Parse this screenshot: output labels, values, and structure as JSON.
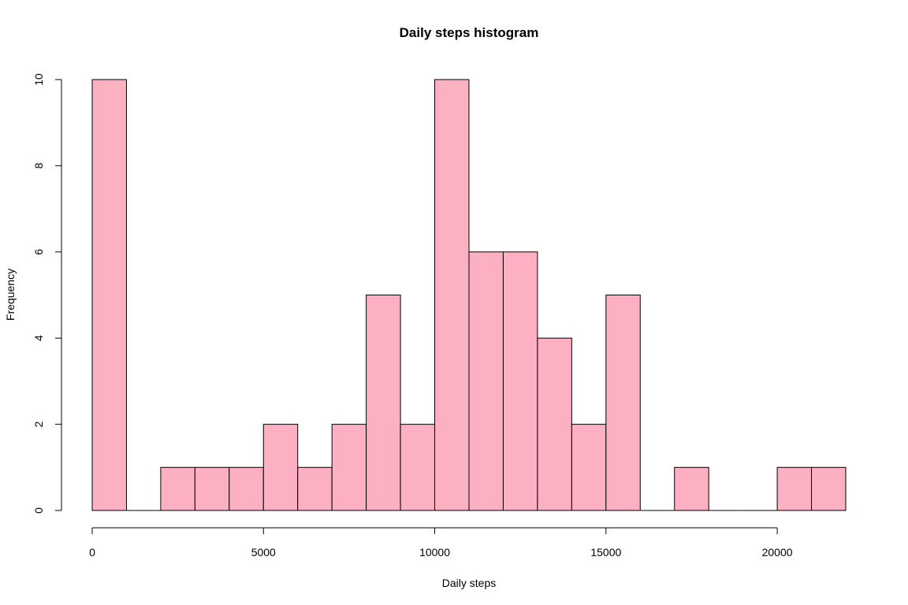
{
  "chart_data": {
    "type": "bar",
    "subtype": "histogram",
    "title": "Daily steps histogram",
    "xlabel": "Daily steps",
    "ylabel": "Frequency",
    "bin_width": 1000,
    "bins": [
      {
        "start": 0,
        "end": 1000,
        "count": 10
      },
      {
        "start": 1000,
        "end": 2000,
        "count": 0
      },
      {
        "start": 2000,
        "end": 3000,
        "count": 1
      },
      {
        "start": 3000,
        "end": 4000,
        "count": 1
      },
      {
        "start": 4000,
        "end": 5000,
        "count": 1
      },
      {
        "start": 5000,
        "end": 6000,
        "count": 2
      },
      {
        "start": 6000,
        "end": 7000,
        "count": 1
      },
      {
        "start": 7000,
        "end": 8000,
        "count": 2
      },
      {
        "start": 8000,
        "end": 9000,
        "count": 5
      },
      {
        "start": 9000,
        "end": 10000,
        "count": 2
      },
      {
        "start": 10000,
        "end": 11000,
        "count": 10
      },
      {
        "start": 11000,
        "end": 12000,
        "count": 6
      },
      {
        "start": 12000,
        "end": 13000,
        "count": 6
      },
      {
        "start": 13000,
        "end": 14000,
        "count": 4
      },
      {
        "start": 14000,
        "end": 15000,
        "count": 2
      },
      {
        "start": 15000,
        "end": 16000,
        "count": 5
      },
      {
        "start": 16000,
        "end": 17000,
        "count": 0
      },
      {
        "start": 17000,
        "end": 18000,
        "count": 1
      },
      {
        "start": 18000,
        "end": 19000,
        "count": 0
      },
      {
        "start": 19000,
        "end": 20000,
        "count": 0
      },
      {
        "start": 20000,
        "end": 21000,
        "count": 1
      },
      {
        "start": 21000,
        "end": 22000,
        "count": 1
      }
    ],
    "xlim": [
      0,
      22000
    ],
    "ylim": [
      0,
      10
    ],
    "x_ticks": [
      0,
      5000,
      10000,
      15000,
      20000
    ],
    "y_ticks": [
      0,
      2,
      4,
      6,
      8,
      10
    ],
    "bar_color": "#FDB0C1",
    "border_color": "#000000",
    "grid": false,
    "legend": "none"
  }
}
